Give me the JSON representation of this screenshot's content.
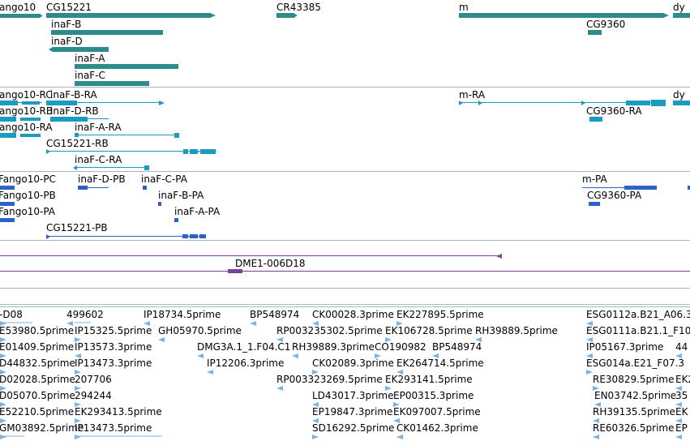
{
  "colors": {
    "gene": "#2e8b8b",
    "mrna": "#1a9bc0",
    "protein": "#2d63c4",
    "clone": "#7a3fa0",
    "est": "#7fb3dc",
    "separator": "#b0b0b0"
  },
  "tracks": {
    "genes": {
      "labels": [
        "ango10",
        "CG15221",
        "CR43385",
        "m",
        "dy",
        "inaF-B",
        "CG9360",
        "inaF-D",
        "inaF-A",
        "inaF-C"
      ]
    },
    "transcripts": {
      "labels": [
        "ango10-RC",
        "inaF-B-RA",
        "m-RA",
        "dy",
        "ango10-RB",
        "inaF-D-RB",
        "CG9360-RA",
        "ango10-RA",
        "inaF-A-RA",
        "CG15221-RB",
        "inaF-C-RA"
      ]
    },
    "proteins": {
      "labels": [
        "Fango10-PC",
        "inaF-D-PB",
        "inaF-C-PA",
        "m-PA",
        "Fango10-PB",
        "inaF-B-PA",
        "CG9360-PA",
        "Fango10-PA",
        "inaF-A-PA",
        "CG15221-PB"
      ]
    },
    "clones": {
      "labels": [
        "DME1-006D18"
      ]
    },
    "ests": {
      "labels": [
        "-D08",
        "499602",
        "IP18734.5prime",
        "BP548974",
        "CK00028.3prime",
        "EK227895.5prime",
        "ESG0112a.B21_A06.3",
        "E53980.5prime",
        "IP15325.5prime",
        "GH05970.5prime",
        "RP003235302.5prime",
        "EK106728.5prime",
        "RH39889.5prime",
        "ESG0111a.B21.1_F10",
        "E01409.5prime",
        "IP13573.3prime",
        "DMG3A.1_1.F04.C1",
        "RH39889.3prime",
        "CO190982",
        "BP548974",
        "IP05167.3prime",
        "44",
        "D44832.5prime",
        "IP13473.3prime",
        "IP12206.3prime",
        "CK02089.3prime",
        "EK264714.5prime",
        "ESG014a.E21_F07.3",
        "D02028.5prime",
        "207706",
        "RP003323269.5prime",
        "EK293141.5prime",
        "RE30829.5prime",
        "EK2",
        "D05070.5prime",
        "294244",
        "LD43017.3prime",
        "EP00315.3prime",
        "EN03742.5prime",
        "35",
        "E52210.5prime",
        "EK293413.5prime",
        "EP19847.3prime",
        "EK097007.5prime",
        "RH39135.5prime",
        "EK",
        "GM03892.5prime",
        "IP13473.5prime",
        "SD16292.5prime",
        "CK01462.3prime",
        "RE60326.5prime",
        "EP"
      ]
    }
  }
}
